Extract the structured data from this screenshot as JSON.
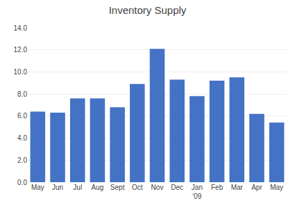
{
  "chart_data": {
    "type": "bar",
    "title": "Inventory Supply",
    "categories": [
      "May",
      "Jun",
      "Jul",
      "Aug",
      "Sept",
      "Oct",
      "Nov",
      "Dec",
      "Jan\n'09",
      "Feb",
      "Mar",
      "Apr",
      "May"
    ],
    "values": [
      6.4,
      6.3,
      7.6,
      7.6,
      6.8,
      8.9,
      12.1,
      9.3,
      7.8,
      9.2,
      9.5,
      6.2,
      5.4
    ],
    "color": "#4472C4",
    "ylim": [
      0,
      14.0
    ],
    "yticks": [
      {
        "value": 0.0,
        "label": "0.0"
      },
      {
        "value": 2.0,
        "label": "2.0"
      },
      {
        "value": 4.0,
        "label": "4.0"
      },
      {
        "value": 6.0,
        "label": "6.0"
      },
      {
        "value": 8.0,
        "label": "8.0"
      },
      {
        "value": 10.0,
        "label": "10.0"
      },
      {
        "value": 12.0,
        "label": "12.0"
      },
      {
        "value": 14.0,
        "label": "14.0"
      }
    ],
    "grid": true
  }
}
